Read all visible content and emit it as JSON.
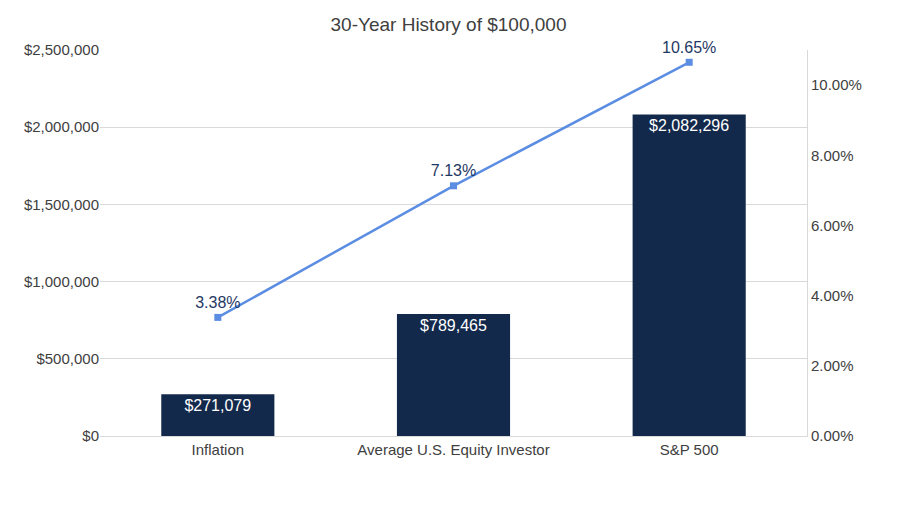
{
  "chart_data": {
    "type": "bar",
    "title": "30-Year History of $100,000",
    "categories": [
      "Inflation",
      "Average U.S. Equity Investor",
      "S&P 500"
    ],
    "series": [
      {
        "type": "bar",
        "color": "#13294b",
        "values": [
          271079,
          789465,
          2082296
        ],
        "value_labels": [
          "$271,079",
          "$789,465",
          "$2,082,296"
        ]
      },
      {
        "type": "line",
        "axis": "y2",
        "color": "#5b8de3",
        "marker": "square",
        "line_style": "solid",
        "values": [
          3.38,
          7.13,
          10.65
        ],
        "value_labels": [
          "3.38%",
          "7.13%",
          "10.65%"
        ]
      }
    ],
    "ylim": [
      0,
      2500000
    ],
    "yticks": [
      {
        "value": 0,
        "label": "$0"
      },
      {
        "value": 500000,
        "label": "$500,000"
      },
      {
        "value": 1000000,
        "label": "$1,000,000"
      },
      {
        "value": 1500000,
        "label": "$1,500,000"
      },
      {
        "value": 2000000,
        "label": "$2,000,000"
      },
      {
        "value": 2500000,
        "label": "$2,500,000"
      }
    ],
    "y2lim": [
      0,
      11
    ],
    "y2ticks": [
      {
        "value": 0,
        "label": "0.00%"
      },
      {
        "value": 2,
        "label": "2.00%"
      },
      {
        "value": 4,
        "label": "4.00%"
      },
      {
        "value": 6,
        "label": "6.00%"
      },
      {
        "value": 8,
        "label": "8.00%"
      },
      {
        "value": 10,
        "label": "10.00%"
      }
    ],
    "grid": true,
    "data_labels": true
  }
}
